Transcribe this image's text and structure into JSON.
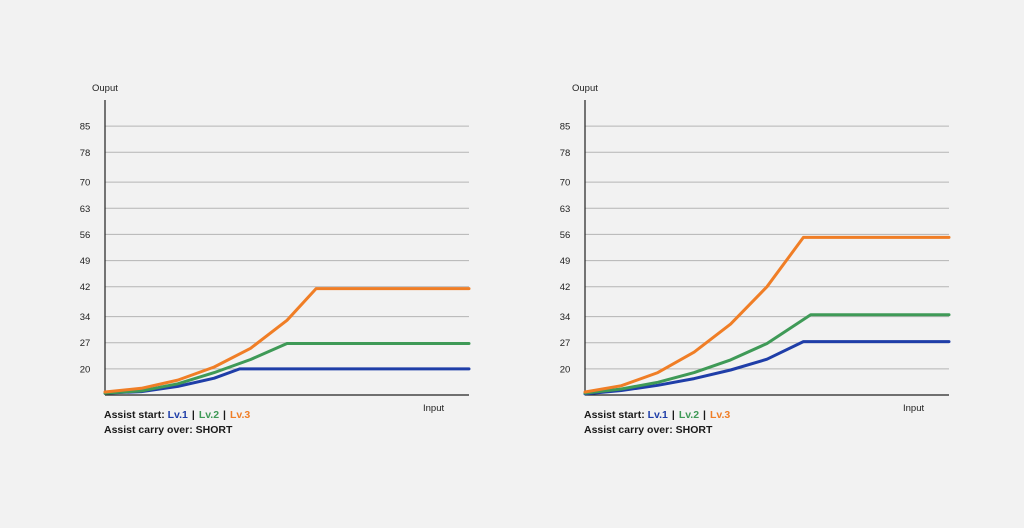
{
  "colors": {
    "lv1": "#1f3ea8",
    "lv2": "#3f9a57",
    "lv3": "#f07e26",
    "grid": "#b5b5b5",
    "axis": "#222222"
  },
  "chart_data": [
    {
      "type": "line",
      "ylabel": "Ouput",
      "xlabel": "Input",
      "yticks": [
        20,
        27,
        34,
        42,
        49,
        56,
        63,
        70,
        78,
        85
      ],
      "ylim": [
        13,
        92
      ],
      "xlim": [
        0,
        100
      ],
      "grid": true,
      "series": [
        {
          "name": "Lv.1",
          "color_key": "lv1",
          "x": [
            0,
            10,
            20,
            30,
            37,
            60,
            100
          ],
          "y": [
            13.5,
            13.9,
            15.3,
            17.5,
            20,
            20,
            20
          ]
        },
        {
          "name": "Lv.2",
          "color_key": "lv2",
          "x": [
            0,
            10,
            20,
            30,
            40,
            50,
            100
          ],
          "y": [
            13.5,
            14.1,
            16.0,
            19.0,
            22.5,
            26.8,
            26.8
          ]
        },
        {
          "name": "Lv.3",
          "color_key": "lv3",
          "x": [
            0,
            10,
            20,
            30,
            40,
            50,
            58,
            100
          ],
          "y": [
            13.8,
            14.8,
            17.0,
            20.5,
            25.5,
            33.0,
            41.5,
            41.5
          ]
        }
      ],
      "caption": {
        "assist_start_label": "Assist start:",
        "levels": [
          "Lv.1",
          "Lv.2",
          "Lv.3"
        ],
        "separator": "|",
        "carry_over": "Assist carry over: SHORT"
      }
    },
    {
      "type": "line",
      "ylabel": "Ouput",
      "xlabel": "Input",
      "yticks": [
        20,
        27,
        34,
        42,
        49,
        56,
        63,
        70,
        78,
        85
      ],
      "ylim": [
        13,
        92
      ],
      "xlim": [
        0,
        100
      ],
      "grid": true,
      "series": [
        {
          "name": "Lv.1",
          "color_key": "lv1",
          "x": [
            0,
            10,
            20,
            30,
            40,
            50,
            60,
            100
          ],
          "y": [
            13.3,
            14.2,
            15.6,
            17.4,
            19.7,
            22.6,
            27.3,
            27.3
          ]
        },
        {
          "name": "Lv.2",
          "color_key": "lv2",
          "x": [
            0,
            10,
            20,
            30,
            40,
            50,
            62,
            100
          ],
          "y": [
            13.5,
            14.6,
            16.4,
            19.0,
            22.4,
            26.8,
            34.5,
            34.5
          ]
        },
        {
          "name": "Lv.3",
          "color_key": "lv3",
          "x": [
            0,
            10,
            20,
            30,
            40,
            50,
            60,
            100
          ],
          "y": [
            13.8,
            15.5,
            19.0,
            24.5,
            32.0,
            42.0,
            55.2,
            55.2
          ]
        }
      ],
      "caption": {
        "assist_start_label": "Assist start:",
        "levels": [
          "Lv.1",
          "Lv.2",
          "Lv.3"
        ],
        "separator": "|",
        "carry_over": "Assist carry over: SHORT"
      }
    }
  ]
}
